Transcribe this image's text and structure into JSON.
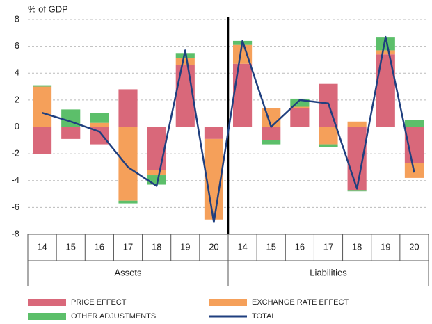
{
  "chart_data": {
    "type": "stacked_bar_line",
    "ylabel": "% of GDP",
    "categories": [
      "14",
      "15",
      "16",
      "17",
      "18",
      "19",
      "20",
      "14",
      "15",
      "16",
      "17",
      "18",
      "19",
      "20"
    ],
    "groups": [
      "Assets",
      "Liabilities"
    ],
    "ylim": [
      -8,
      8
    ],
    "yticks": [
      -8,
      -6,
      -4,
      -2,
      0,
      2,
      4,
      6,
      8
    ],
    "grid": true,
    "series": [
      {
        "name": "PRICE EFFECT",
        "color": "#d9687a",
        "kind": "bar",
        "values": [
          -2.0,
          -0.9,
          -1.3,
          2.8,
          -3.2,
          4.6,
          -0.9,
          4.7,
          -1.0,
          1.4,
          3.2,
          -4.7,
          5.4,
          -2.7
        ]
      },
      {
        "name": "EXCHANGE RATE EFFECT",
        "color": "#f5a05a",
        "kind": "bar",
        "values": [
          3.0,
          0,
          0.3,
          -5.5,
          -0.4,
          0.5,
          -6.0,
          1.4,
          1.4,
          0.1,
          -1.3,
          0.4,
          0.3,
          -1.1
        ]
      },
      {
        "name": "OTHER ADJUSTMENTS",
        "color": "#5cbf6a",
        "kind": "bar",
        "values": [
          0.1,
          1.3,
          0.75,
          -0.2,
          -0.7,
          0.4,
          0,
          0.3,
          -0.3,
          0.6,
          -0.2,
          -0.1,
          1.0,
          0.5
        ]
      },
      {
        "name": "TOTAL",
        "color": "#1f3f7f",
        "kind": "line",
        "values": [
          1.05,
          0.4,
          -0.35,
          -3.0,
          -4.4,
          5.7,
          -7.1,
          6.4,
          0,
          2.0,
          1.75,
          -4.6,
          6.7,
          -3.4
        ]
      }
    ]
  }
}
